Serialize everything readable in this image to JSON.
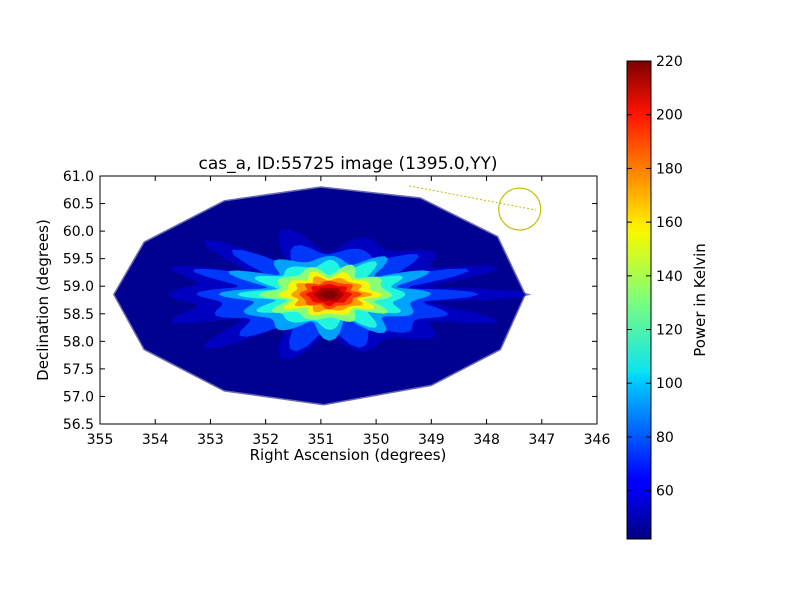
{
  "chart_data": {
    "type": "heatmap",
    "title": "cas_a, ID:55725 image (1395.0,YY)",
    "xlabel": "Right Ascension (degrees)",
    "ylabel": "Declination (degrees)",
    "xlim": [
      355,
      346
    ],
    "ylim": [
      56.5,
      61.0
    ],
    "x_ticks": [
      "355",
      "354",
      "353",
      "352",
      "351",
      "350",
      "349",
      "348",
      "347",
      "346"
    ],
    "y_ticks": [
      "56.5",
      "57.0",
      "57.5",
      "58.0",
      "58.5",
      "59.0",
      "59.5",
      "60.0",
      "60.5",
      "61.0"
    ],
    "colorbar": {
      "label": "Power in Kelvin",
      "range": [
        42,
        220
      ],
      "ticks": [
        "60",
        "80",
        "100",
        "120",
        "140",
        "160",
        "180",
        "200",
        "220"
      ],
      "colormap": "jet"
    },
    "background_level": 45,
    "footprint_polygon_deg": [
      [
        354.75,
        58.85
      ],
      [
        354.2,
        59.8
      ],
      [
        352.75,
        60.55
      ],
      [
        351.0,
        60.8
      ],
      [
        349.2,
        60.6
      ],
      [
        347.8,
        59.9
      ],
      [
        347.3,
        58.85
      ],
      [
        347.75,
        57.85
      ],
      [
        349.0,
        57.2
      ],
      [
        350.95,
        56.85
      ],
      [
        352.75,
        57.1
      ],
      [
        354.2,
        57.85
      ]
    ],
    "source": {
      "ra": 350.85,
      "dec": 58.85,
      "peak": 220
    },
    "beam_marker": {
      "ra": 347.4,
      "dec": 60.4,
      "radius_deg": 0.38,
      "line_from": [
        349.4,
        60.82
      ],
      "line_to": [
        347.1,
        60.38
      ],
      "color": "#c0c000"
    }
  }
}
